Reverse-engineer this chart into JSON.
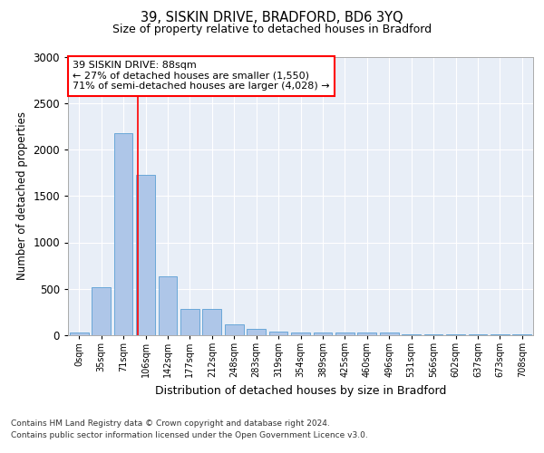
{
  "title1": "39, SISKIN DRIVE, BRADFORD, BD6 3YQ",
  "title2": "Size of property relative to detached houses in Bradford",
  "xlabel": "Distribution of detached houses by size in Bradford",
  "ylabel": "Number of detached properties",
  "categories": [
    "0sqm",
    "35sqm",
    "71sqm",
    "106sqm",
    "142sqm",
    "177sqm",
    "212sqm",
    "248sqm",
    "283sqm",
    "319sqm",
    "354sqm",
    "389sqm",
    "425sqm",
    "460sqm",
    "496sqm",
    "531sqm",
    "566sqm",
    "602sqm",
    "637sqm",
    "673sqm",
    "708sqm"
  ],
  "values": [
    30,
    520,
    2180,
    1730,
    630,
    280,
    280,
    120,
    65,
    40,
    30,
    30,
    30,
    25,
    25,
    5,
    5,
    5,
    5,
    5,
    5
  ],
  "bar_color": "#aec6e8",
  "bar_edge_color": "#5a9fd4",
  "background_color": "#e8eef7",
  "ylim": [
    0,
    3000
  ],
  "yticks": [
    0,
    500,
    1000,
    1500,
    2000,
    2500,
    3000
  ],
  "red_line_x": 2.67,
  "annotation_text": "39 SISKIN DRIVE: 88sqm\n← 27% of detached houses are smaller (1,550)\n71% of semi-detached houses are larger (4,028) →",
  "footer1": "Contains HM Land Registry data © Crown copyright and database right 2024.",
  "footer2": "Contains public sector information licensed under the Open Government Licence v3.0."
}
